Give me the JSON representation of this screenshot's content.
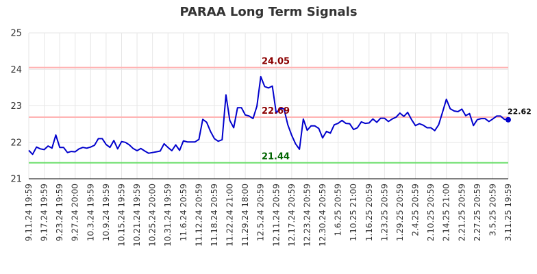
{
  "chart_data": {
    "type": "line",
    "title": "PARAA Long Term Signals",
    "xlabel": "",
    "ylabel": "",
    "ylim": [
      21,
      25
    ],
    "y_ticks": [
      "21",
      "22",
      "23",
      "24",
      "25"
    ],
    "x_tick_labels": [
      "9.11.24 19:59",
      "9.17.24 19:59",
      "9.23.24 19:59",
      "9.27.24 20:00",
      "10.3.24 19:59",
      "10.9.24 19:59",
      "10.15.24 19:59",
      "10.21.24 19:59",
      "10.25.24 20:00",
      "10.31.24 19:59",
      "11.6.24 20:59",
      "11.12.24 20:59",
      "11.18.24 20:59",
      "11.22.24 21:00",
      "11.29.24 18:00",
      "12.5.24 20:59",
      "12.11.24 20:59",
      "12.17.24 20:59",
      "12.23.24 20:59",
      "12.30.24 20:59",
      "1.6.25 20:59",
      "1.10.25 21:00",
      "1.16.25 20:59",
      "1.23.25 20:59",
      "1.29.25 20:59",
      "2.4.25 20:59",
      "2.10.25 20:59",
      "2.14.25 21:00",
      "2.21.25 20:59",
      "2.27.25 20:59",
      "3.5.25 20:59",
      "3.11.25 19:59"
    ],
    "series": [
      {
        "color": "#0000cc",
        "values": [
          21.78,
          21.67,
          21.87,
          21.82,
          21.8,
          21.9,
          21.84,
          22.2,
          21.86,
          21.86,
          21.72,
          21.75,
          21.74,
          21.82,
          21.86,
          21.84,
          21.87,
          21.92,
          22.1,
          22.1,
          21.94,
          21.86,
          22.05,
          21.82,
          22.02,
          22.0,
          21.93,
          21.83,
          21.77,
          21.83,
          21.76,
          21.7,
          21.72,
          21.74,
          21.76,
          21.96,
          21.86,
          21.77,
          21.93,
          21.78,
          22.04,
          22.01,
          22.01,
          22.01,
          22.08,
          22.63,
          22.55,
          22.3,
          22.1,
          22.03,
          22.07,
          23.3,
          22.6,
          22.4,
          22.95,
          22.95,
          22.75,
          22.72,
          22.65,
          22.99,
          23.8,
          23.53,
          23.49,
          23.54,
          22.8,
          22.93,
          22.92,
          22.48,
          22.19,
          21.96,
          21.81,
          22.64,
          22.33,
          22.45,
          22.45,
          22.38,
          22.12,
          22.3,
          22.25,
          22.48,
          22.52,
          22.6,
          22.52,
          22.51,
          22.35,
          22.4,
          22.56,
          22.52,
          22.53,
          22.64,
          22.55,
          22.66,
          22.66,
          22.57,
          22.64,
          22.69,
          22.8,
          22.71,
          22.82,
          22.62,
          22.46,
          22.51,
          22.47,
          22.4,
          22.4,
          22.32,
          22.48,
          22.82,
          23.18,
          22.92,
          22.86,
          22.84,
          22.91,
          22.73,
          22.79,
          22.46,
          22.62,
          22.65,
          22.65,
          22.57,
          22.64,
          22.72,
          22.72,
          22.63,
          22.62
        ]
      }
    ],
    "reference_lines": [
      {
        "value": 24.05,
        "label": "24.05",
        "line_color": "#ffb3b3",
        "label_color": "#8b0000"
      },
      {
        "value": 22.69,
        "label": "22.69",
        "line_color": "#ffb3b3",
        "label_color": "#8b0000"
      },
      {
        "value": 21.44,
        "label": "21.44",
        "line_color": "#66dd66",
        "label_color": "#006400"
      }
    ],
    "last_value_label": "22.62",
    "grid": true,
    "legend": "none"
  }
}
